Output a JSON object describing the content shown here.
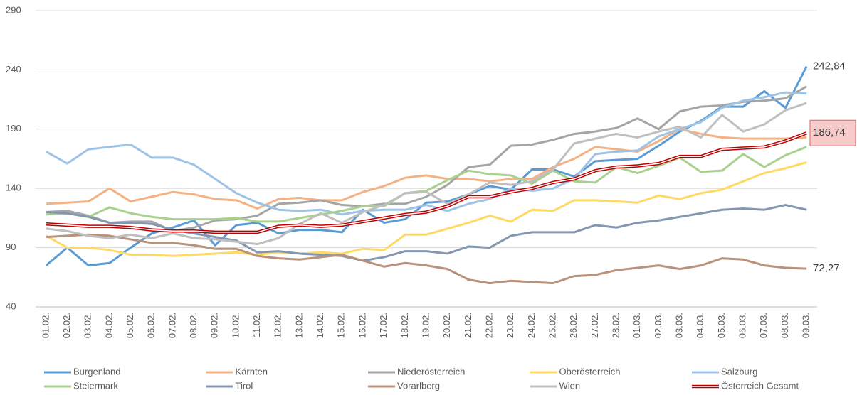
{
  "chart_data": {
    "type": "line",
    "categories": [
      "01.02.",
      "02.02.",
      "03.02.",
      "04.02.",
      "05.02.",
      "06.02.",
      "07.02.",
      "08.02.",
      "09.02.",
      "10.02.",
      "11.02.",
      "12.02.",
      "13.02.",
      "14.02.",
      "15.02.",
      "16.02.",
      "17.02.",
      "18.02.",
      "19.02.",
      "20.02.",
      "21.02.",
      "22.02.",
      "23.02.",
      "24.02.",
      "25.02.",
      "26.02.",
      "27.02.",
      "28.02.",
      "01.03.",
      "02.03.",
      "03.03.",
      "04.03.",
      "05.03.",
      "06.03.",
      "07.03.",
      "08.03.",
      "09.03."
    ],
    "ylim": [
      40,
      290
    ],
    "yticks": [
      40,
      90,
      140,
      190,
      240,
      290
    ],
    "grid": true,
    "series": [
      {
        "name": "Burgenland",
        "color": "#5b9bd5",
        "values": [
          75,
          90,
          75,
          77,
          90,
          102,
          107,
          113,
          92,
          109,
          111,
          102,
          105,
          105,
          103,
          122,
          111,
          114,
          128,
          129,
          135,
          142,
          139,
          156,
          156,
          150,
          163,
          164,
          165,
          176,
          188,
          197,
          209,
          209,
          222,
          208,
          242.84
        ],
        "value_labels": [
          null,
          null,
          null,
          null,
          null,
          null,
          null,
          null,
          null,
          null,
          null,
          null,
          null,
          null,
          null,
          null,
          null,
          null,
          null,
          null,
          null,
          null,
          null,
          null,
          null,
          null,
          null,
          null,
          null,
          null,
          null,
          null,
          null,
          null,
          null,
          null,
          "242,84"
        ]
      },
      {
        "name": "Kärnten",
        "color": "#f4b183",
        "values": [
          127,
          128,
          129,
          140,
          129,
          133,
          137,
          135,
          131,
          130,
          123,
          131,
          132,
          130,
          130,
          137,
          142,
          149,
          151,
          148,
          148,
          146,
          148,
          148,
          158,
          165,
          175,
          173,
          171,
          180,
          190,
          186,
          183,
          182,
          182,
          182,
          183
        ]
      },
      {
        "name": "Niederösterreich",
        "color": "#a5a5a5",
        "values": [
          120,
          121,
          117,
          111,
          112,
          112,
          104,
          107,
          113,
          114,
          117,
          127,
          128,
          130,
          126,
          125,
          127,
          127,
          133,
          143,
          158,
          160,
          176,
          177,
          181,
          186,
          188,
          191,
          199,
          190,
          205,
          209,
          210,
          213,
          214,
          216,
          226
        ]
      },
      {
        "name": "Oberösterreich",
        "color": "#ffd966",
        "values": [
          100,
          90,
          90,
          88,
          84,
          84,
          83,
          84,
          85,
          86,
          84,
          86,
          85,
          86,
          85,
          89,
          88,
          101,
          101,
          106,
          111,
          117,
          112,
          122,
          121,
          130,
          130,
          129,
          128,
          134,
          131,
          136,
          139,
          146,
          153,
          157,
          162
        ]
      },
      {
        "name": "Salzburg",
        "color": "#9dc3e6",
        "values": [
          171,
          161,
          173,
          175,
          177,
          166,
          166,
          160,
          148,
          136,
          128,
          122,
          121,
          122,
          118,
          121,
          122,
          122,
          126,
          121,
          127,
          131,
          140,
          138,
          140,
          148,
          169,
          171,
          172,
          184,
          190,
          196,
          208,
          214,
          217,
          221,
          220
        ]
      },
      {
        "name": "Steiermark",
        "color": "#a9d18e",
        "values": [
          118,
          119,
          116,
          124,
          119,
          116,
          114,
          114,
          114,
          115,
          112,
          112,
          115,
          118,
          121,
          125,
          125,
          136,
          138,
          147,
          155,
          152,
          151,
          144,
          155,
          146,
          145,
          158,
          153,
          159,
          166,
          154,
          155,
          169,
          158,
          168,
          175
        ]
      },
      {
        "name": "Tirol",
        "color": "#8497b0",
        "values": [
          120,
          119,
          116,
          111,
          111,
          110,
          105,
          102,
          99,
          96,
          86,
          87,
          85,
          84,
          83,
          79,
          82,
          87,
          87,
          85,
          91,
          90,
          100,
          103,
          103,
          103,
          109,
          107,
          111,
          113,
          116,
          119,
          122,
          123,
          122,
          126,
          122
        ]
      },
      {
        "name": "Vorarlberg",
        "color": "#b8927a",
        "values": [
          99,
          100,
          101,
          100,
          97,
          94,
          94,
          92,
          89,
          89,
          83,
          81,
          80,
          82,
          84,
          79,
          74,
          77,
          75,
          72,
          63,
          60,
          62,
          61,
          60,
          66,
          67,
          71,
          73,
          75,
          72,
          75,
          81,
          80,
          75,
          73,
          72.27
        ],
        "value_labels": [
          null,
          null,
          null,
          null,
          null,
          null,
          null,
          null,
          null,
          null,
          null,
          null,
          null,
          null,
          null,
          null,
          null,
          null,
          null,
          null,
          null,
          null,
          null,
          null,
          null,
          null,
          null,
          null,
          null,
          null,
          null,
          null,
          null,
          null,
          null,
          null,
          "72,27"
        ]
      },
      {
        "name": "Wien",
        "color": "#bfbfbf",
        "values": [
          106,
          104,
          100,
          98,
          101,
          98,
          102,
          98,
          97,
          95,
          93,
          98,
          110,
          119,
          111,
          120,
          126,
          136,
          137,
          127,
          135,
          145,
          143,
          146,
          156,
          178,
          182,
          186,
          183,
          188,
          192,
          183,
          202,
          188,
          194,
          206,
          212
        ]
      },
      {
        "name": "Österreich Gesamt",
        "color": "#c00000",
        "double": true,
        "values": [
          110,
          109,
          108,
          108,
          107,
          105,
          104,
          104,
          103,
          103,
          103,
          108,
          109,
          108,
          109,
          112,
          115,
          118,
          120,
          125,
          133,
          133,
          137,
          140,
          145,
          148,
          155,
          158,
          159,
          161,
          167,
          167,
          173,
          174,
          175,
          180,
          186.74
        ],
        "value_labels": [
          null,
          null,
          null,
          null,
          null,
          null,
          null,
          null,
          null,
          null,
          null,
          null,
          null,
          null,
          null,
          null,
          null,
          null,
          null,
          null,
          null,
          null,
          null,
          null,
          null,
          null,
          null,
          null,
          null,
          null,
          null,
          null,
          null,
          null,
          null,
          null,
          "186,74"
        ]
      }
    ]
  }
}
